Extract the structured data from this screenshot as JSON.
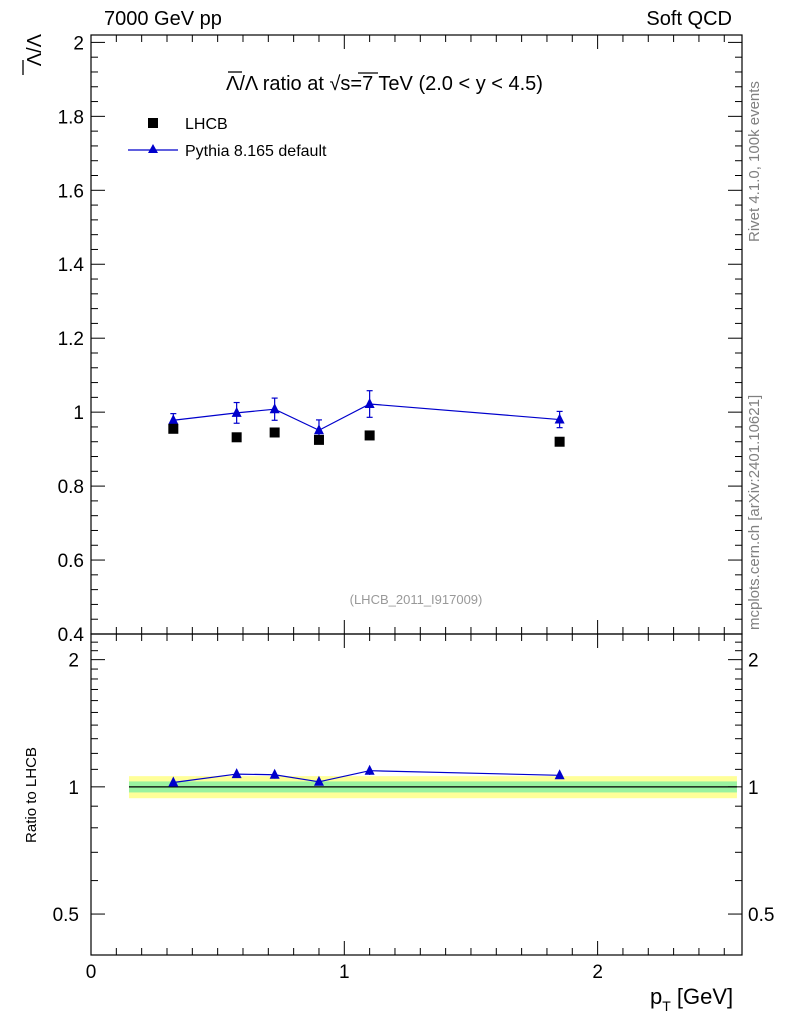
{
  "header": {
    "left": "7000 GeV pp",
    "right": "Soft QCD"
  },
  "side_labels": {
    "rivet": "Rivet 4.1.0,  100k events",
    "mcplots": "mcplots.cern.ch [arXiv:2401.10621]"
  },
  "watermark": "(LHCB_2011_I917009)",
  "chart_data": [
    {
      "type": "scatter",
      "panel": "main",
      "title_parts": {
        "ratio_symbol": "Λ/Λ",
        "ratio_text": " ratio at ",
        "sqrt_symbol": "√",
        "energy": "s=7 TeV (2.0 < y < 4.5)"
      },
      "ylabel": "Λ/Λ",
      "xlim": [
        0,
        2.57
      ],
      "ylim": [
        0.4,
        2.02
      ],
      "yticks": [
        0.4,
        0.6,
        0.8,
        1,
        1.2,
        1.4,
        1.6,
        1.8,
        2
      ],
      "ytick_labels": [
        "0.4",
        "0.6",
        "0.8",
        "1",
        "1.2",
        "1.4",
        "1.6",
        "1.8",
        "2"
      ],
      "legend": [
        {
          "name": "LHCB",
          "marker": "square",
          "color": "#000000"
        },
        {
          "name": "Pythia 8.165 default",
          "marker": "triangle",
          "color": "#0000cc"
        }
      ],
      "series": [
        {
          "name": "LHCB",
          "x": [
            0.325,
            0.575,
            0.725,
            0.9,
            1.1,
            1.85
          ],
          "values": [
            0.955,
            0.932,
            0.945,
            0.925,
            0.937,
            0.92
          ]
        },
        {
          "name": "Pythia 8.165 default",
          "x": [
            0.325,
            0.575,
            0.725,
            0.9,
            1.1,
            1.85
          ],
          "values": [
            0.978,
            0.998,
            1.008,
            0.951,
            1.022,
            0.98
          ],
          "errors": [
            0.018,
            0.028,
            0.03,
            0.028,
            0.036,
            0.022
          ]
        }
      ]
    },
    {
      "type": "line",
      "panel": "ratio",
      "ylabel": "Ratio to LHCB",
      "xlabel_main": "p",
      "xlabel_sub": "T",
      "xlabel_unit": " [GeV]",
      "xlim": [
        0,
        2.57
      ],
      "xticks": [
        0,
        1,
        2
      ],
      "xtick_labels": [
        "0",
        "1",
        "2"
      ],
      "ylim": [
        0.4,
        2.3
      ],
      "yticks": [
        0.5,
        1,
        2
      ],
      "ytick_labels": [
        "0.5",
        "1",
        "2"
      ],
      "bands": {
        "x_range": [
          0.15,
          2.55
        ],
        "yellow": [
          0.94,
          1.06
        ],
        "green": [
          0.97,
          1.03
        ]
      },
      "series": [
        {
          "name": "Pythia 8.165 default",
          "x": [
            0.325,
            0.575,
            0.725,
            0.9,
            1.1,
            1.85
          ],
          "values": [
            1.024,
            1.072,
            1.068,
            1.028,
            1.092,
            1.065
          ],
          "errors": [
            0.012,
            0.02,
            0.022,
            0.02,
            0.025,
            0.012
          ]
        }
      ]
    }
  ]
}
